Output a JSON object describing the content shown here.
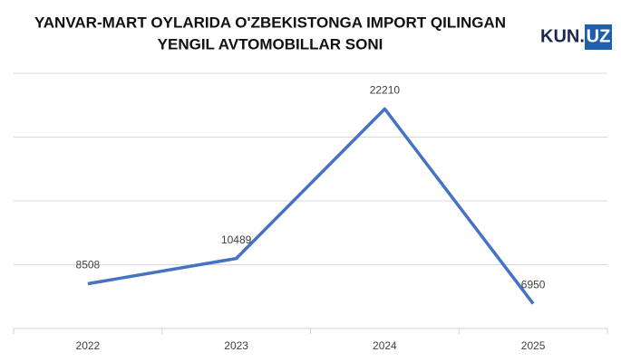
{
  "chart_data": {
    "type": "line",
    "title": [
      "YANVAR-MART OYLARIDA O'ZBEKISTONGA IMPORT QILINGAN",
      "YENGIL AVTOMOBILLAR SONI"
    ],
    "logo": [
      "KUN.",
      "UZ"
    ],
    "categories": [
      "2022",
      "2023",
      "2024",
      "2025"
    ],
    "values": [
      8508,
      10489,
      22210,
      6950
    ],
    "color": "#4472c4",
    "ylim": [
      5000,
      25000
    ],
    "yticks": [
      5000,
      10000,
      15000,
      20000,
      25000
    ],
    "grid": true
  }
}
